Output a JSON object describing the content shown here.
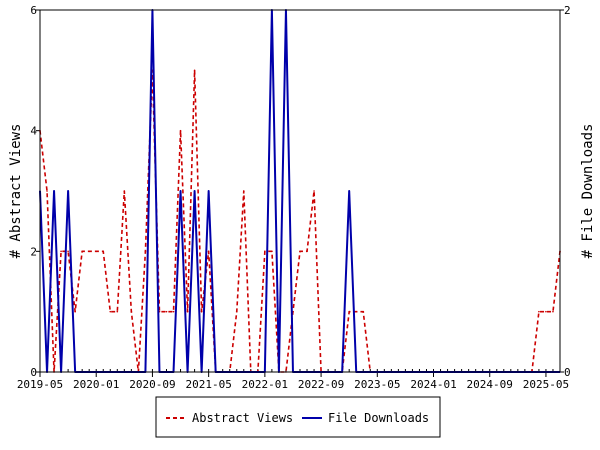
{
  "chart_data": {
    "type": "line",
    "x_tick_labels": [
      "2019-05",
      "2020-01",
      "2020-09",
      "2021-05",
      "2022-01",
      "2022-09",
      "2023-05",
      "2024-01",
      "2024-09",
      "2025-05"
    ],
    "x_range": [
      "2019-05",
      "2025-07"
    ],
    "y_left": {
      "label": "# Abstract Views",
      "range": [
        0,
        6
      ],
      "ticks": [
        "0",
        "2",
        "4",
        "6"
      ]
    },
    "y_right": {
      "label": "# File Downloads",
      "range": [
        0,
        2
      ],
      "ticks": [
        "0",
        "2"
      ]
    },
    "legend_position": "bottom-center",
    "grid": false,
    "series": [
      {
        "name": "Abstract Views",
        "axis": "left",
        "color": "#cc0000",
        "dash": "dashed",
        "points": [
          [
            "2019-05",
            4
          ],
          [
            "2019-06",
            3
          ],
          [
            "2019-07",
            0
          ],
          [
            "2019-08",
            2
          ],
          [
            "2019-09",
            2
          ],
          [
            "2019-10",
            1
          ],
          [
            "2019-11",
            2
          ],
          [
            "2019-12",
            2
          ],
          [
            "2020-01",
            2
          ],
          [
            "2020-02",
            2
          ],
          [
            "2020-03",
            1
          ],
          [
            "2020-04",
            1
          ],
          [
            "2020-05",
            3
          ],
          [
            "2020-06",
            1
          ],
          [
            "2020-07",
            0
          ],
          [
            "2020-08",
            2
          ],
          [
            "2020-09",
            5
          ],
          [
            "2020-10",
            1
          ],
          [
            "2020-11",
            1
          ],
          [
            "2020-12",
            1
          ],
          [
            "2021-01",
            4
          ],
          [
            "2021-02",
            1
          ],
          [
            "2021-03",
            5
          ],
          [
            "2021-04",
            1
          ],
          [
            "2021-05",
            2
          ],
          [
            "2021-06",
            0
          ],
          [
            "2021-07",
            0
          ],
          [
            "2021-08",
            0
          ],
          [
            "2021-09",
            1
          ],
          [
            "2021-10",
            3
          ],
          [
            "2021-11",
            0
          ],
          [
            "2021-12",
            0
          ],
          [
            "2022-01",
            2
          ],
          [
            "2022-02",
            2
          ],
          [
            "2022-03",
            0
          ],
          [
            "2022-04",
            0
          ],
          [
            "2022-05",
            1
          ],
          [
            "2022-06",
            2
          ],
          [
            "2022-07",
            2
          ],
          [
            "2022-08",
            3
          ],
          [
            "2022-09",
            0
          ],
          [
            "2022-10",
            0
          ],
          [
            "2022-11",
            0
          ],
          [
            "2022-12",
            0
          ],
          [
            "2023-01",
            1
          ],
          [
            "2023-02",
            1
          ],
          [
            "2023-03",
            1
          ],
          [
            "2023-04",
            0
          ],
          [
            "2023-05",
            0
          ],
          [
            "2023-06",
            0
          ],
          [
            "2023-07",
            0
          ],
          [
            "2023-08",
            0
          ],
          [
            "2023-09",
            0
          ],
          [
            "2023-10",
            0
          ],
          [
            "2023-11",
            0
          ],
          [
            "2023-12",
            0
          ],
          [
            "2024-01",
            0
          ],
          [
            "2024-02",
            0
          ],
          [
            "2024-03",
            0
          ],
          [
            "2024-04",
            0
          ],
          [
            "2024-05",
            0
          ],
          [
            "2024-06",
            0
          ],
          [
            "2024-07",
            0
          ],
          [
            "2024-08",
            0
          ],
          [
            "2024-09",
            0
          ],
          [
            "2024-10",
            0
          ],
          [
            "2024-11",
            0
          ],
          [
            "2024-12",
            0
          ],
          [
            "2025-01",
            0
          ],
          [
            "2025-02",
            0
          ],
          [
            "2025-03",
            0
          ],
          [
            "2025-04",
            1
          ],
          [
            "2025-05",
            1
          ],
          [
            "2025-06",
            1
          ],
          [
            "2025-07",
            2
          ]
        ]
      },
      {
        "name": "File Downloads",
        "axis": "right",
        "color": "#0000aa",
        "dash": "solid",
        "points": [
          [
            "2019-05",
            1
          ],
          [
            "2019-06",
            0
          ],
          [
            "2019-07",
            1
          ],
          [
            "2019-08",
            0
          ],
          [
            "2019-09",
            1
          ],
          [
            "2019-10",
            0
          ],
          [
            "2019-11",
            0
          ],
          [
            "2019-12",
            0
          ],
          [
            "2020-01",
            0
          ],
          [
            "2020-02",
            0
          ],
          [
            "2020-03",
            0
          ],
          [
            "2020-04",
            0
          ],
          [
            "2020-05",
            0
          ],
          [
            "2020-06",
            0
          ],
          [
            "2020-07",
            0
          ],
          [
            "2020-08",
            0
          ],
          [
            "2020-09",
            2
          ],
          [
            "2020-10",
            0
          ],
          [
            "2020-11",
            0
          ],
          [
            "2020-12",
            0
          ],
          [
            "2021-01",
            1
          ],
          [
            "2021-02",
            0
          ],
          [
            "2021-03",
            1
          ],
          [
            "2021-04",
            0
          ],
          [
            "2021-05",
            1
          ],
          [
            "2021-06",
            0
          ],
          [
            "2021-07",
            0
          ],
          [
            "2021-08",
            0
          ],
          [
            "2021-09",
            0
          ],
          [
            "2021-10",
            0
          ],
          [
            "2021-11",
            0
          ],
          [
            "2021-12",
            0
          ],
          [
            "2022-01",
            0
          ],
          [
            "2022-02",
            2
          ],
          [
            "2022-03",
            0
          ],
          [
            "2022-04",
            2
          ],
          [
            "2022-05",
            0
          ],
          [
            "2022-06",
            0
          ],
          [
            "2022-07",
            0
          ],
          [
            "2022-08",
            0
          ],
          [
            "2022-09",
            0
          ],
          [
            "2022-10",
            0
          ],
          [
            "2022-11",
            0
          ],
          [
            "2022-12",
            0
          ],
          [
            "2023-01",
            1
          ],
          [
            "2023-02",
            0
          ],
          [
            "2023-03",
            0
          ],
          [
            "2023-04",
            0
          ],
          [
            "2023-05",
            0
          ],
          [
            "2023-06",
            0
          ],
          [
            "2023-07",
            0
          ],
          [
            "2023-08",
            0
          ],
          [
            "2023-09",
            0
          ],
          [
            "2023-10",
            0
          ],
          [
            "2023-11",
            0
          ],
          [
            "2023-12",
            0
          ],
          [
            "2024-01",
            0
          ],
          [
            "2024-02",
            0
          ],
          [
            "2024-03",
            0
          ],
          [
            "2024-04",
            0
          ],
          [
            "2024-05",
            0
          ],
          [
            "2024-06",
            0
          ],
          [
            "2024-07",
            0
          ],
          [
            "2024-08",
            0
          ],
          [
            "2024-09",
            0
          ],
          [
            "2024-10",
            0
          ],
          [
            "2024-11",
            0
          ],
          [
            "2024-12",
            0
          ],
          [
            "2025-01",
            0
          ],
          [
            "2025-02",
            0
          ],
          [
            "2025-03",
            0
          ],
          [
            "2025-04",
            0
          ],
          [
            "2025-05",
            0
          ],
          [
            "2025-06",
            0
          ],
          [
            "2025-07",
            0
          ]
        ]
      }
    ]
  },
  "legend": {
    "items": [
      {
        "label": "Abstract Views",
        "color": "#cc0000",
        "dash": "dashed"
      },
      {
        "label": "File Downloads",
        "color": "#0000aa",
        "dash": "solid"
      }
    ]
  }
}
